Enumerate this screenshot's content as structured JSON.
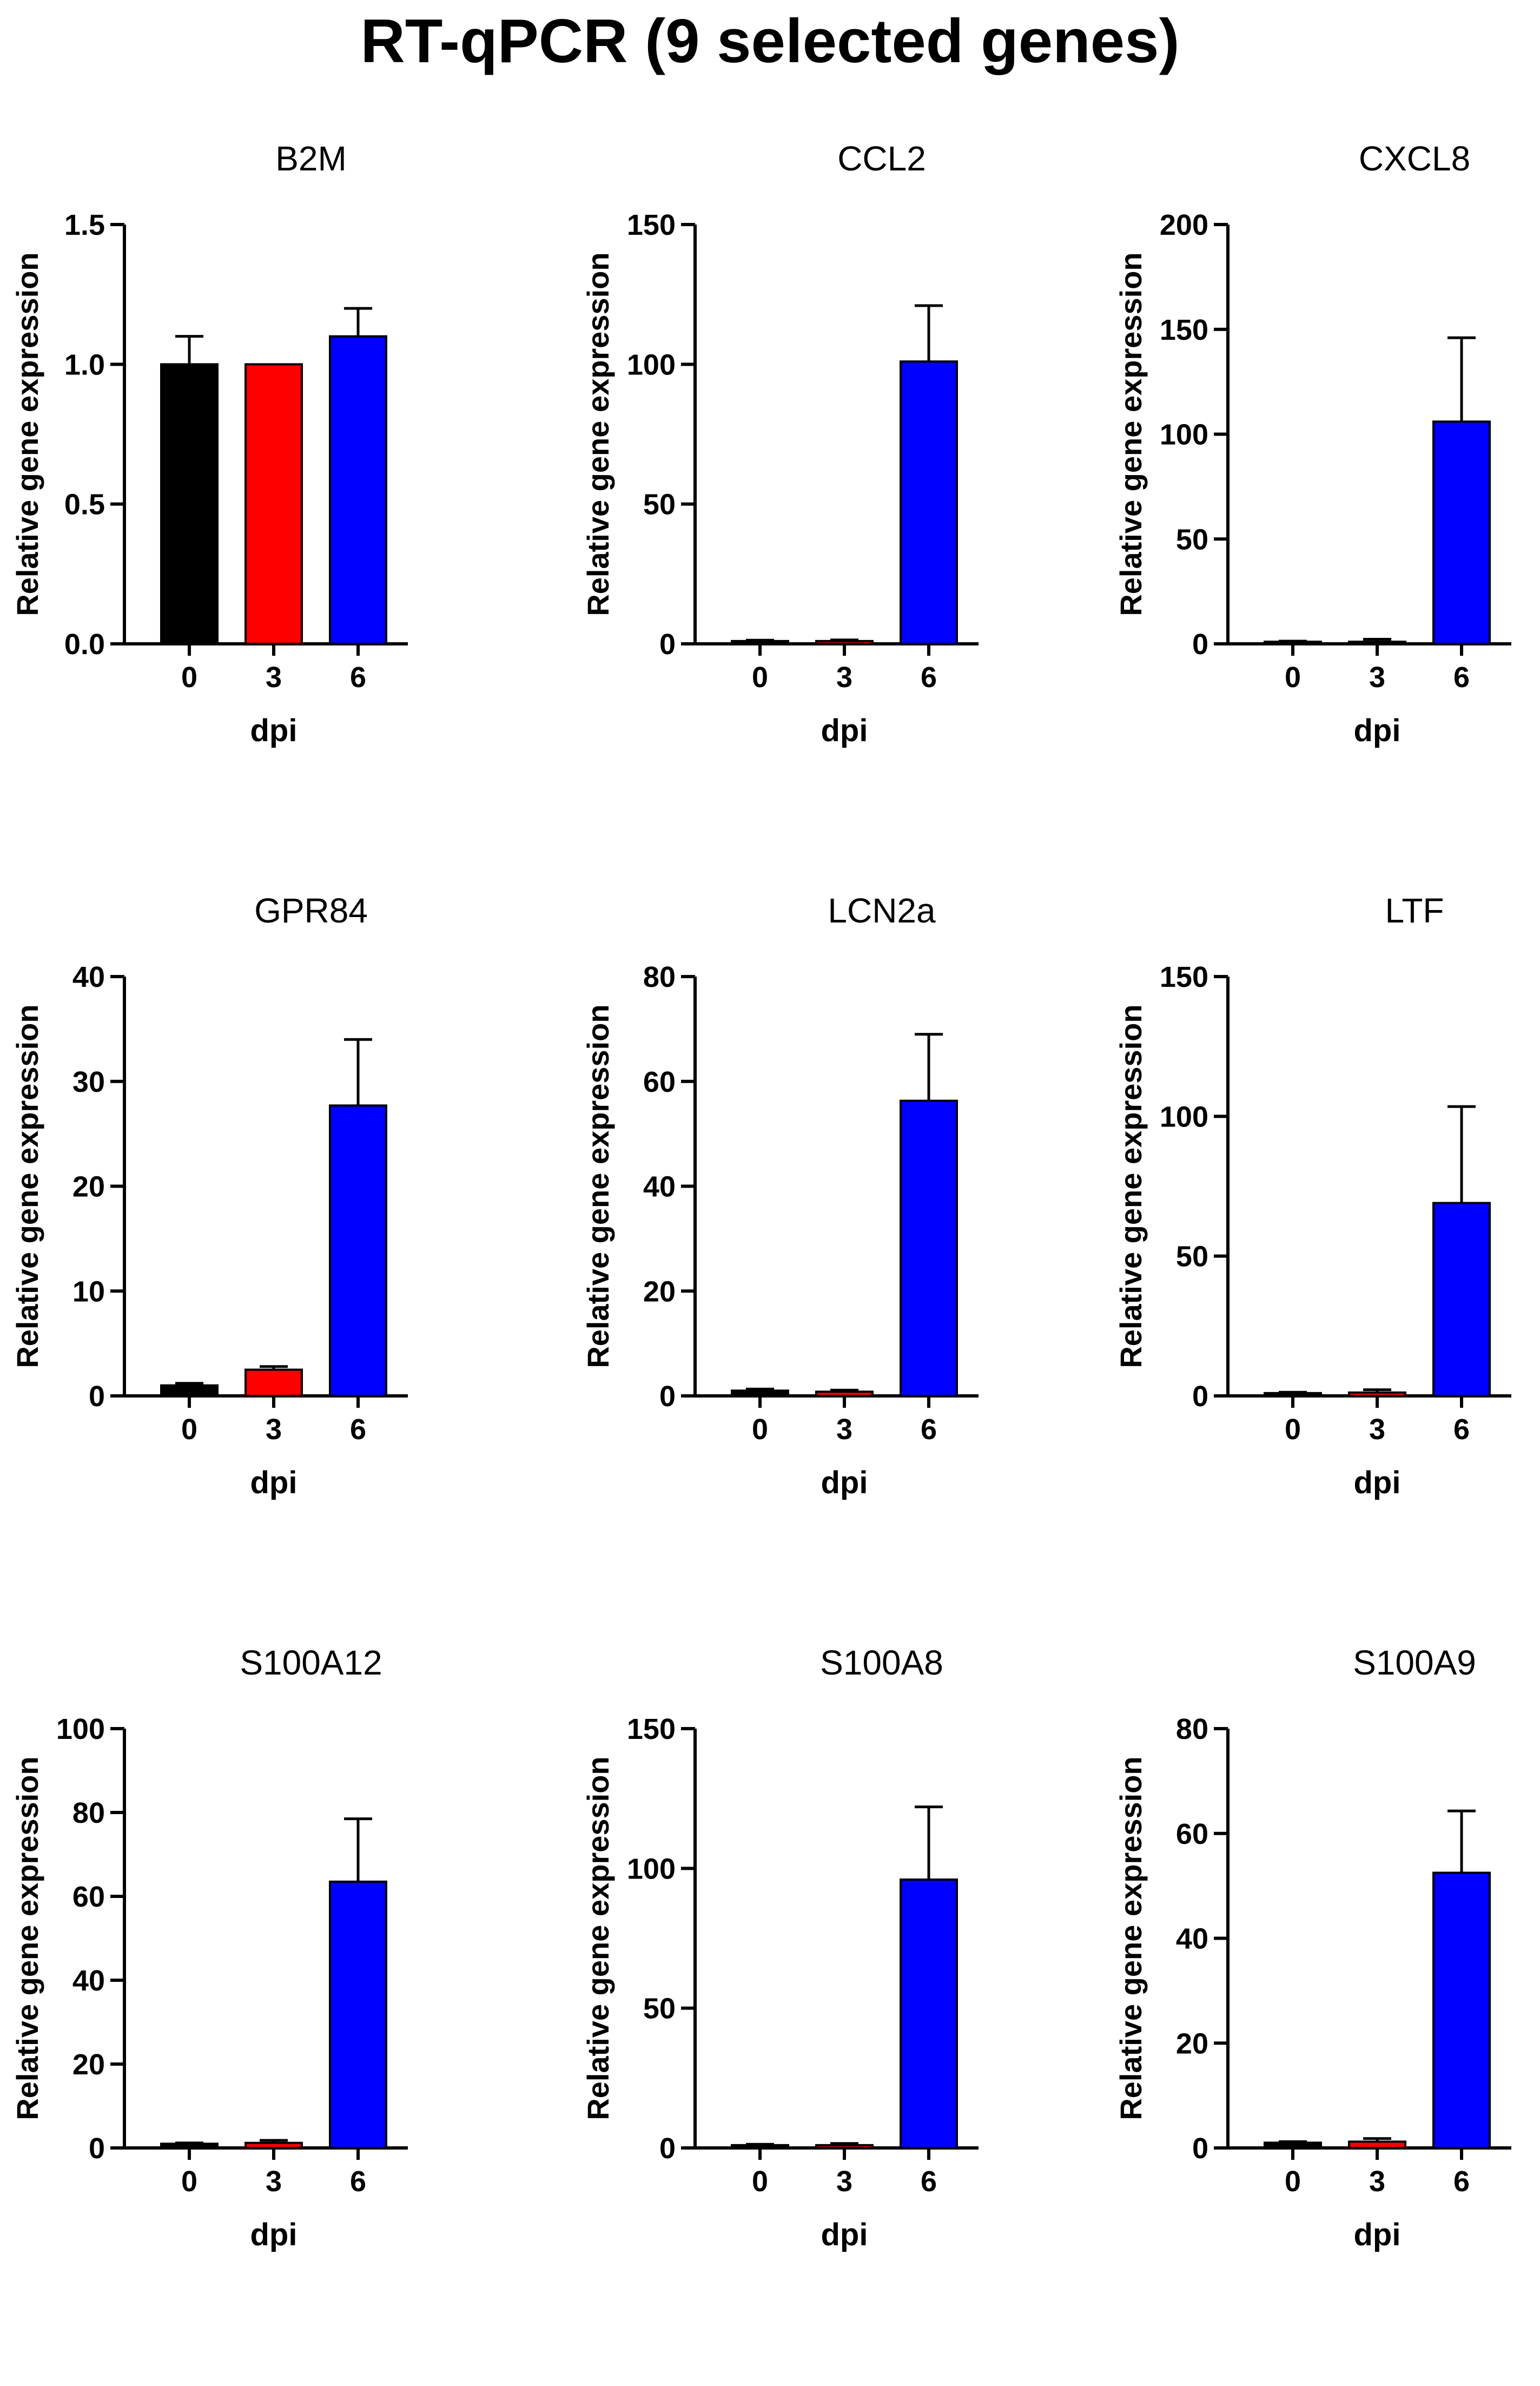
{
  "title": "RT-qPCR (9 selected genes)",
  "chart_data": [
    {
      "type": "bar",
      "title": "B2M",
      "xlabel": "dpi",
      "ylabel": "Relative gene expression",
      "categories": [
        "0",
        "3",
        "6"
      ],
      "values": [
        1.0,
        1.0,
        1.1
      ],
      "errors": [
        0.1,
        0.0,
        0.1
      ],
      "ylim": [
        0,
        1.5
      ],
      "yticks": [
        "0.0",
        "0.5",
        "1.0",
        "1.5"
      ]
    },
    {
      "type": "bar",
      "title": "CCL2",
      "xlabel": "dpi",
      "ylabel": "Relative gene expression",
      "categories": [
        "0",
        "3",
        "6"
      ],
      "values": [
        1,
        1,
        101
      ],
      "errors": [
        0.3,
        0.4,
        20
      ],
      "ylim": [
        0,
        150
      ],
      "yticks": [
        "0",
        "50",
        "100",
        "150"
      ]
    },
    {
      "type": "bar",
      "title": "CXCL8",
      "xlabel": "dpi",
      "ylabel": "Relative gene expression",
      "categories": [
        "0",
        "3",
        "6"
      ],
      "values": [
        1,
        1,
        106
      ],
      "errors": [
        0.3,
        1.2,
        40
      ],
      "ylim": [
        0,
        200
      ],
      "yticks": [
        "0",
        "50",
        "100",
        "150",
        "200"
      ]
    },
    {
      "type": "bar",
      "title": "GPR84",
      "xlabel": "dpi",
      "ylabel": "Relative gene expression",
      "categories": [
        "0",
        "3",
        "6"
      ],
      "values": [
        1,
        2.5,
        27.7
      ],
      "errors": [
        0.2,
        0.3,
        6.3
      ],
      "ylim": [
        0,
        40
      ],
      "yticks": [
        "0",
        "10",
        "20",
        "30",
        "40"
      ]
    },
    {
      "type": "bar",
      "title": "LCN2a",
      "xlabel": "dpi",
      "ylabel": "Relative gene expression",
      "categories": [
        "0",
        "3",
        "6"
      ],
      "values": [
        1,
        0.8,
        56.3
      ],
      "errors": [
        0.3,
        0.3,
        12.7
      ],
      "ylim": [
        0,
        80
      ],
      "yticks": [
        "0",
        "20",
        "40",
        "60",
        "80"
      ]
    },
    {
      "type": "bar",
      "title": "LTF",
      "xlabel": "dpi",
      "ylabel": "Relative gene expression",
      "categories": [
        "0",
        "3",
        "6"
      ],
      "values": [
        1,
        1.2,
        69
      ],
      "errors": [
        0.3,
        1,
        34.5
      ],
      "ylim": [
        0,
        150
      ],
      "yticks": [
        "0",
        "50",
        "100",
        "150"
      ]
    },
    {
      "type": "bar",
      "title": "S100A12",
      "xlabel": "dpi",
      "ylabel": "Relative gene expression",
      "categories": [
        "0",
        "3",
        "6"
      ],
      "values": [
        1,
        1.2,
        63.5
      ],
      "errors": [
        0.2,
        0.6,
        15
      ],
      "ylim": [
        0,
        100
      ],
      "yticks": [
        "0",
        "20",
        "40",
        "60",
        "80",
        "100"
      ]
    },
    {
      "type": "bar",
      "title": "S100A8",
      "xlabel": "dpi",
      "ylabel": "Relative gene expression",
      "categories": [
        "0",
        "3",
        "6"
      ],
      "values": [
        1,
        1,
        96
      ],
      "errors": [
        0.3,
        0.6,
        26
      ],
      "ylim": [
        0,
        150
      ],
      "yticks": [
        "0",
        "50",
        "100",
        "150"
      ]
    },
    {
      "type": "bar",
      "title": "S100A9",
      "xlabel": "dpi",
      "ylabel": "Relative gene expression",
      "categories": [
        "0",
        "3",
        "6"
      ],
      "values": [
        1,
        1.2,
        52.5
      ],
      "errors": [
        0.2,
        0.6,
        11.8
      ],
      "ylim": [
        0,
        80
      ],
      "yticks": [
        "0",
        "20",
        "40",
        "60",
        "80"
      ]
    }
  ],
  "colors": {
    "day0": "#000000",
    "day3": "#ff0000",
    "day6": "#0000ff"
  }
}
